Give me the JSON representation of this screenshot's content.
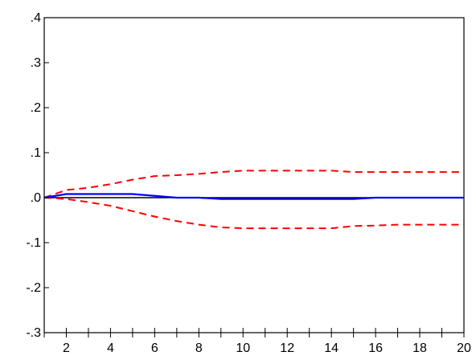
{
  "chart_data": {
    "type": "line",
    "title": "",
    "xlabel": "",
    "ylabel": "",
    "x": [
      1,
      2,
      3,
      4,
      5,
      6,
      7,
      8,
      9,
      10,
      11,
      12,
      13,
      14,
      15,
      16,
      17,
      18,
      19,
      20
    ],
    "xlim": [
      1,
      20
    ],
    "ylim": [
      -0.3,
      0.4
    ],
    "x_ticks": [
      2,
      4,
      6,
      8,
      10,
      12,
      14,
      16,
      18,
      20
    ],
    "x_tick_labels": [
      "2",
      "4",
      "6",
      "8",
      "10",
      "12",
      "14",
      "16",
      "18",
      "20"
    ],
    "y_ticks": [
      0.4,
      0.3,
      0.2,
      0.1,
      0.0,
      -0.1,
      -0.2,
      -0.3
    ],
    "y_tick_labels": [
      ".4",
      ".3",
      ".2",
      ".1",
      ".0",
      "-.1",
      "-.2",
      "-.3"
    ],
    "zero_line": true,
    "grid": false,
    "legend": "none",
    "series": [
      {
        "style": "solid",
        "color": "#0000ff",
        "values": [
          0.0,
          0.008,
          0.008,
          0.008,
          0.008,
          0.004,
          0.0,
          0.0,
          -0.003,
          -0.003,
          -0.003,
          -0.003,
          -0.003,
          -0.003,
          -0.003,
          0.0,
          0.0,
          0.0,
          0.0,
          0.0
        ]
      },
      {
        "style": "dashed",
        "color": "#ff0000",
        "values": [
          0.0,
          0.017,
          0.022,
          0.03,
          0.04,
          0.048,
          0.05,
          0.053,
          0.057,
          0.06,
          0.06,
          0.06,
          0.06,
          0.06,
          0.057,
          0.057,
          0.057,
          0.057,
          0.057,
          0.057
        ]
      },
      {
        "style": "dashed",
        "color": "#ff0000",
        "values": [
          0.0,
          -0.003,
          -0.01,
          -0.018,
          -0.03,
          -0.042,
          -0.052,
          -0.06,
          -0.066,
          -0.068,
          -0.068,
          -0.068,
          -0.068,
          -0.068,
          -0.063,
          -0.062,
          -0.06,
          -0.06,
          -0.06,
          -0.06
        ]
      }
    ]
  }
}
